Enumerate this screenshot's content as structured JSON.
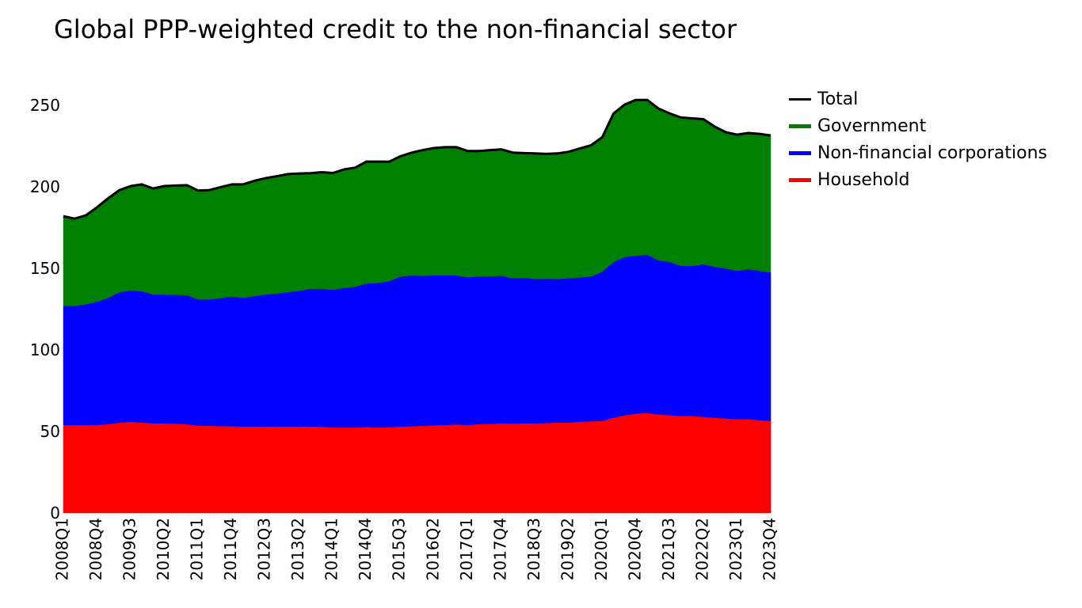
{
  "title": "Global PPP-weighted credit to the non-financial sector",
  "legend": {
    "items": [
      {
        "label": "Total",
        "color": "#000000"
      },
      {
        "label": "Government",
        "color": "#008000"
      },
      {
        "label": "Non-financial corporations",
        "color": "#0000ff"
      },
      {
        "label": "Household",
        "color": "#ff0000"
      }
    ]
  },
  "chart_data": {
    "type": "area",
    "stacked": true,
    "title": "Global PPP-weighted credit to the non-financial sector",
    "xlabel": "",
    "ylabel": "",
    "ylim": [
      0,
      260
    ],
    "yticks": [
      0,
      50,
      100,
      150,
      200,
      250
    ],
    "grid": false,
    "legend_position": "top-right",
    "x": [
      "2008Q1",
      "2008Q2",
      "2008Q3",
      "2008Q4",
      "2009Q1",
      "2009Q2",
      "2009Q3",
      "2009Q4",
      "2010Q1",
      "2010Q2",
      "2010Q3",
      "2010Q4",
      "2011Q1",
      "2011Q2",
      "2011Q3",
      "2011Q4",
      "2012Q1",
      "2012Q2",
      "2012Q3",
      "2012Q4",
      "2013Q1",
      "2013Q2",
      "2013Q3",
      "2013Q4",
      "2014Q1",
      "2014Q2",
      "2014Q3",
      "2014Q4",
      "2015Q1",
      "2015Q2",
      "2015Q3",
      "2015Q4",
      "2016Q1",
      "2016Q2",
      "2016Q3",
      "2016Q4",
      "2017Q1",
      "2017Q2",
      "2017Q3",
      "2017Q4",
      "2018Q1",
      "2018Q2",
      "2018Q3",
      "2018Q4",
      "2019Q1",
      "2019Q2",
      "2019Q3",
      "2019Q4",
      "2020Q1",
      "2020Q2",
      "2020Q3",
      "2020Q4",
      "2021Q1",
      "2021Q2",
      "2021Q3",
      "2021Q4",
      "2022Q1",
      "2022Q2",
      "2022Q3",
      "2022Q4",
      "2023Q1",
      "2023Q2",
      "2023Q3",
      "2023Q4"
    ],
    "xtick_labels": [
      "2008Q1",
      "2008Q4",
      "2009Q3",
      "2010Q2",
      "2011Q1",
      "2011Q4",
      "2012Q3",
      "2013Q2",
      "2014Q1",
      "2014Q4",
      "2015Q3",
      "2016Q2",
      "2017Q1",
      "2017Q4",
      "2018Q3",
      "2019Q2",
      "2020Q1",
      "2020Q4",
      "2021Q3",
      "2022Q2",
      "2023Q1",
      "2023Q4"
    ],
    "series": [
      {
        "name": "Household",
        "color": "#ff0000",
        "values": [
          54,
          54,
          54,
          54,
          54.5,
          55.5,
          56,
          55.5,
          55,
          55,
          54.8,
          54.5,
          53.5,
          53.5,
          53.3,
          53.2,
          53,
          53,
          53,
          53,
          53,
          53,
          53,
          53,
          52.5,
          52.5,
          52.5,
          52.8,
          52.5,
          52.7,
          53,
          53.2,
          53.5,
          53.8,
          54,
          54.3,
          54,
          54.5,
          54.7,
          55,
          54.8,
          55,
          55,
          55.2,
          55.5,
          55.5,
          56,
          56.3,
          56.5,
          58.5,
          60,
          61,
          61.3,
          60.5,
          60,
          59.5,
          59.5,
          59,
          58.5,
          58,
          57.5,
          57.5,
          57,
          56.5
        ]
      },
      {
        "name": "Non-financial corporations",
        "color": "#0000ff",
        "values": [
          73,
          73,
          74,
          75.5,
          77.5,
          80,
          80.5,
          80.5,
          79,
          79,
          79,
          79,
          77.5,
          77.5,
          78.5,
          79.5,
          79,
          80,
          81,
          81.5,
          82.5,
          83.3,
          84.5,
          84.5,
          84.5,
          85.5,
          86.3,
          88,
          88.5,
          89.5,
          92,
          92.5,
          92,
          92,
          91.8,
          91.5,
          90.5,
          90.5,
          90.3,
          90.5,
          89.2,
          89.2,
          88.5,
          88.5,
          88,
          88.5,
          88.5,
          88.7,
          91.5,
          95.5,
          97,
          96.8,
          97,
          94.5,
          94,
          92,
          92,
          93.5,
          92.5,
          92,
          91,
          92,
          91.5,
          91
        ]
      },
      {
        "name": "Government",
        "color": "#008000",
        "values": [
          55,
          53.5,
          54.5,
          58,
          61,
          62.5,
          64,
          65.5,
          65,
          66.5,
          67,
          67.5,
          66.7,
          67,
          68,
          68.8,
          69.5,
          70.7,
          71.3,
          72,
          72.3,
          71.9,
          70.9,
          71.5,
          71.5,
          72.7,
          73,
          74.7,
          74.5,
          73.2,
          73.7,
          75.2,
          77,
          78,
          78.5,
          78.5,
          77.5,
          77,
          77.5,
          77.5,
          77,
          76.5,
          77,
          76.5,
          77,
          77.5,
          79,
          80.5,
          82.5,
          91,
          93.5,
          95.5,
          95,
          93,
          91,
          91,
          90.5,
          89,
          86,
          83.5,
          83,
          83.5,
          84,
          84
        ]
      },
      {
        "name": "Total",
        "color": "#000000",
        "values": [
          182,
          180.5,
          182.5,
          187.5,
          193,
          198,
          200.5,
          201.5,
          199,
          200.5,
          200.8,
          201,
          197.7,
          198,
          199.8,
          201.5,
          201.5,
          203.7,
          205.3,
          206.5,
          207.8,
          208.2,
          208.4,
          209,
          208.5,
          210.7,
          211.8,
          215.5,
          215.5,
          215.4,
          218.7,
          220.9,
          222.5,
          223.8,
          224.3,
          224.3,
          222,
          222,
          222.5,
          223,
          221,
          220.7,
          220.5,
          220.2,
          220.5,
          221.5,
          223.5,
          225.5,
          230.5,
          245,
          250.5,
          253.3,
          253.3,
          248,
          245,
          242.5,
          242,
          241.5,
          237,
          233.5,
          232,
          233,
          232.5,
          231.5
        ]
      }
    ]
  }
}
